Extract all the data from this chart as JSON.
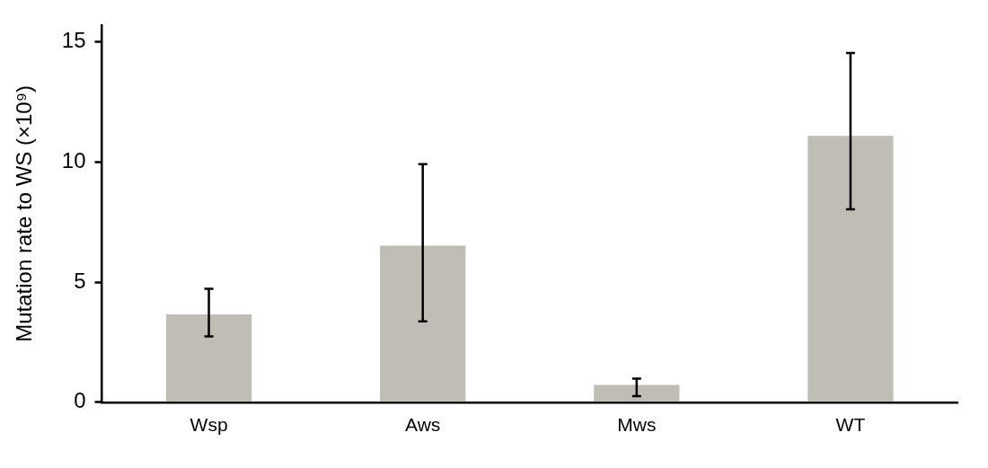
{
  "chart_data": {
    "type": "bar",
    "ylabel": "Mutation rate to WS (×10⁹)",
    "categories": [
      "Wsp",
      "Aws",
      "Mws",
      "WT"
    ],
    "values": [
      3.66,
      6.52,
      0.72,
      11.09
    ],
    "errors": [
      [
        2.74,
        4.72
      ],
      [
        3.37,
        9.91
      ],
      [
        0.25,
        0.98
      ],
      [
        8.03,
        14.54
      ]
    ],
    "color": "#c0bdb5",
    "ylim": [
      0,
      15.7
    ],
    "yticks": [
      0,
      5,
      10,
      15
    ],
    "grid": false,
    "legend": false
  }
}
